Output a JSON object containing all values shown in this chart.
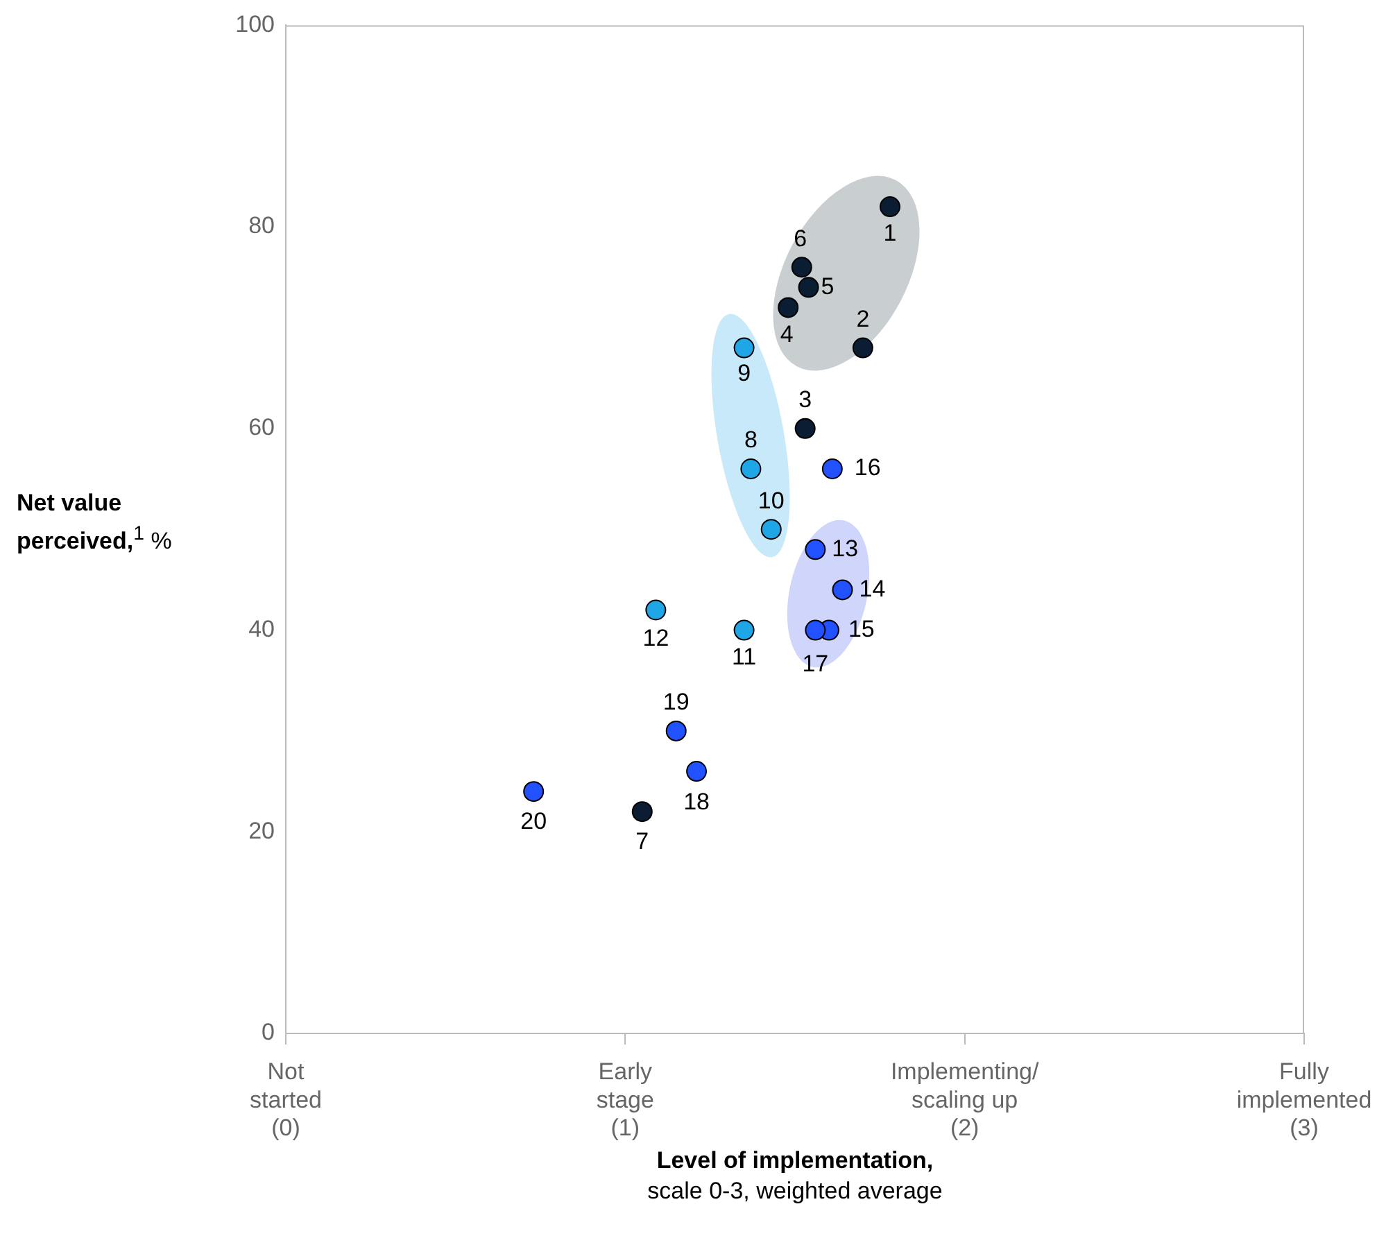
{
  "chart_data": {
    "type": "scatter",
    "xlabel": "Level of implementation,\nscale 0-3, weighted average",
    "ylabel": "Net value\nperceived,$^{1}$ %",
    "xlim": [
      0,
      3
    ],
    "xticks": [
      {
        "value": 0,
        "label": "Not\nstarted\n(0)"
      },
      {
        "value": 1,
        "label": "Early\nstage\n(1)"
      },
      {
        "value": 2,
        "label": "Implementing/\nscaling up\n(2)"
      },
      {
        "value": 3,
        "label": "Fully\nimplemented\n(3)"
      }
    ],
    "ylim": [
      0,
      100
    ],
    "yticks": [
      0,
      20,
      40,
      60,
      80,
      100
    ],
    "grid": false,
    "legend": false,
    "marker": "circle",
    "series": [
      {
        "color": "#0b1d33",
        "x": [
          1.78,
          1.7,
          1.53,
          1.48,
          1.54,
          1.52,
          1.05
        ],
        "values": [
          82,
          68,
          60,
          72,
          74,
          76,
          22
        ]
      },
      {
        "color": "#1fa6e6",
        "x": [
          1.37,
          1.35,
          1.43,
          1.35,
          1.09
        ],
        "values": [
          56,
          68,
          50,
          40,
          42
        ]
      },
      {
        "color": "#2251ff",
        "x": [
          1.56,
          1.64,
          1.6,
          1.61,
          1.56,
          1.21,
          1.15,
          0.73
        ],
        "values": [
          48,
          44,
          40,
          56,
          40,
          26,
          30,
          24
        ]
      }
    ],
    "annotations": [
      {
        "text": "1",
        "x": 1.78,
        "y": 82
      },
      {
        "text": "2",
        "x": 1.7,
        "y": 68
      },
      {
        "text": "3",
        "x": 1.53,
        "y": 60
      },
      {
        "text": "4",
        "x": 1.48,
        "y": 72
      },
      {
        "text": "5",
        "x": 1.54,
        "y": 74
      },
      {
        "text": "6",
        "x": 1.52,
        "y": 76
      },
      {
        "text": "7",
        "x": 1.05,
        "y": 22
      },
      {
        "text": "8",
        "x": 1.37,
        "y": 56
      },
      {
        "text": "9",
        "x": 1.35,
        "y": 68
      },
      {
        "text": "10",
        "x": 1.43,
        "y": 50
      },
      {
        "text": "11",
        "x": 1.35,
        "y": 40
      },
      {
        "text": "12",
        "x": 1.09,
        "y": 42
      },
      {
        "text": "13",
        "x": 1.56,
        "y": 48
      },
      {
        "text": "14",
        "x": 1.64,
        "y": 44
      },
      {
        "text": "15",
        "x": 1.6,
        "y": 40
      },
      {
        "text": "16",
        "x": 1.61,
        "y": 56
      },
      {
        "text": "17",
        "x": 1.56,
        "y": 40
      },
      {
        "text": "18",
        "x": 1.21,
        "y": 26
      },
      {
        "text": "19",
        "x": 1.15,
        "y": 30
      },
      {
        "text": "20",
        "x": 0.73,
        "y": 24
      }
    ]
  }
}
